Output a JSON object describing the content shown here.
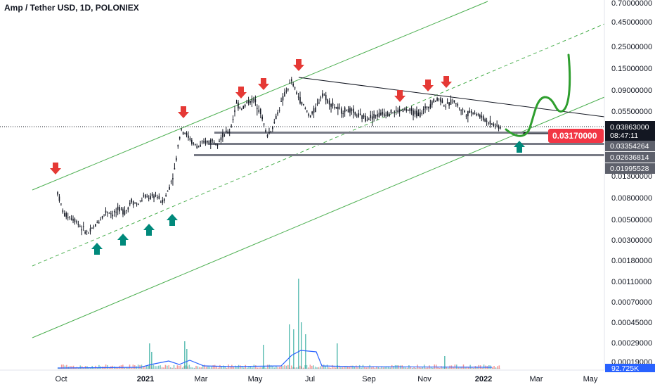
{
  "header": {
    "symbol": "Amp / Tether USD, 1D, POLONIEX"
  },
  "colors": {
    "up": "#26a69a",
    "down": "#ef5350",
    "candle": "#131722",
    "channel": "#4caf50",
    "arrow_down": "#e53935",
    "arrow_up": "#00897b",
    "forecast": "#2e9e2e",
    "volume_ma": "#2962ff",
    "support": "#787b86"
  },
  "chart_data": {
    "type": "candlestick",
    "title": "Amp / Tether USD, 1D, POLONIEX",
    "y_scale": "log",
    "y_ticks": [
      "0.70000000",
      "0.45000000",
      "0.25000000",
      "0.15000000",
      "0.09000000",
      "0.05500000",
      "0.03863000",
      "0.03170000",
      "0.01300000",
      "0.00800000",
      "0.00500000",
      "0.00300000",
      "0.00180000",
      "0.00110000",
      "0.00070000",
      "0.00045000",
      "0.00029000",
      "0.00019000"
    ],
    "y_tick_values": [
      0.7,
      0.45,
      0.25,
      0.15,
      0.09,
      0.055,
      0.013,
      0.008,
      0.005,
      0.003,
      0.0018,
      0.0011,
      0.0007,
      0.00045,
      0.00029,
      0.00019
    ],
    "x_ticks": [
      {
        "label": "Oct",
        "bold": false
      },
      {
        "label": "2021",
        "bold": true
      },
      {
        "label": "Mar",
        "bold": false
      },
      {
        "label": "May",
        "bold": false
      },
      {
        "label": "Jul",
        "bold": false
      },
      {
        "label": "Sep",
        "bold": false
      },
      {
        "label": "Nov",
        "bold": false
      },
      {
        "label": "2022",
        "bold": true
      },
      {
        "label": "Mar",
        "bold": false
      },
      {
        "label": "May",
        "bold": false
      }
    ],
    "price_path": [
      [
        0.0,
        0.009
      ],
      [
        0.02,
        0.0055
      ],
      [
        0.04,
        0.0052
      ],
      [
        0.06,
        0.0048
      ],
      [
        0.08,
        0.004
      ],
      [
        0.1,
        0.0036
      ],
      [
        0.12,
        0.0042
      ],
      [
        0.14,
        0.005
      ],
      [
        0.16,
        0.006
      ],
      [
        0.18,
        0.0055
      ],
      [
        0.2,
        0.0062
      ],
      [
        0.22,
        0.0058
      ],
      [
        0.24,
        0.0075
      ],
      [
        0.26,
        0.0068
      ],
      [
        0.28,
        0.0082
      ],
      [
        0.3,
        0.008
      ],
      [
        0.32,
        0.0085
      ],
      [
        0.34,
        0.0072
      ],
      [
        0.36,
        0.0095
      ],
      [
        0.38,
        0.015
      ],
      [
        0.4,
        0.038
      ],
      [
        0.42,
        0.033
      ],
      [
        0.44,
        0.027
      ],
      [
        0.46,
        0.025
      ],
      [
        0.48,
        0.028
      ],
      [
        0.5,
        0.029
      ],
      [
        0.52,
        0.0285
      ],
      [
        0.54,
        0.033
      ],
      [
        0.56,
        0.036
      ],
      [
        0.58,
        0.065
      ],
      [
        0.6,
        0.06
      ],
      [
        0.62,
        0.07
      ],
      [
        0.64,
        0.072
      ],
      [
        0.66,
        0.055
      ],
      [
        0.68,
        0.032
      ],
      [
        0.7,
        0.04
      ],
      [
        0.72,
        0.06
      ],
      [
        0.74,
        0.085
      ],
      [
        0.76,
        0.11
      ],
      [
        0.78,
        0.08
      ],
      [
        0.8,
        0.062
      ],
      [
        0.82,
        0.05
      ],
      [
        0.84,
        0.06
      ],
      [
        0.86,
        0.085
      ],
      [
        0.88,
        0.07
      ],
      [
        0.9,
        0.062
      ],
      [
        0.92,
        0.056
      ],
      [
        0.94,
        0.058
      ],
      [
        0.96,
        0.055
      ],
      [
        0.98,
        0.05
      ],
      [
        1.0,
        0.048
      ]
    ],
    "price_path_part2": [
      [
        0.0,
        0.048
      ],
      [
        0.1,
        0.052
      ],
      [
        0.2,
        0.055
      ],
      [
        0.3,
        0.058
      ],
      [
        0.4,
        0.052
      ],
      [
        0.5,
        0.07
      ],
      [
        0.55,
        0.075
      ],
      [
        0.6,
        0.062
      ],
      [
        0.65,
        0.072
      ],
      [
        0.7,
        0.06
      ],
      [
        0.75,
        0.053
      ],
      [
        0.8,
        0.056
      ],
      [
        0.85,
        0.05
      ],
      [
        0.9,
        0.045
      ],
      [
        1.0,
        0.039
      ]
    ],
    "last_price": "0.03863000",
    "countdown": "08:47:11",
    "alert_price": "0.03170000",
    "support_levels": [
      "0.03354264",
      "0.02636814",
      "0.01995528"
    ],
    "volume_label": "92.725K"
  }
}
